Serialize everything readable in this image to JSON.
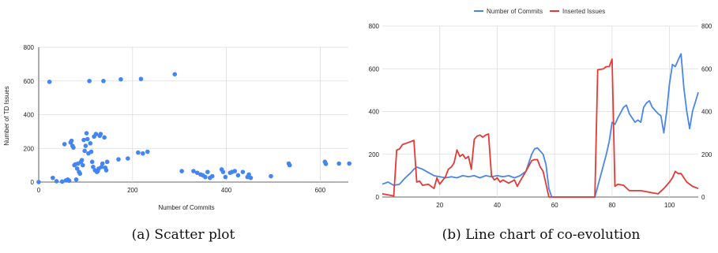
{
  "chart_data": [
    {
      "type": "scatter",
      "xlabel": "Number of Commits",
      "ylabel": "Number of TD Issues",
      "xlim": [
        0,
        660
      ],
      "ylim": [
        0,
        800
      ],
      "xticks": [
        0,
        200,
        400,
        600
      ],
      "yticks": [
        0,
        200,
        400,
        600,
        800
      ],
      "grid": true,
      "point_color": "#4285f4",
      "caption": "(a) Scatter plot",
      "points": [
        [
          0,
          0
        ],
        [
          23,
          595
        ],
        [
          30,
          25
        ],
        [
          38,
          5
        ],
        [
          50,
          3
        ],
        [
          55,
          225
        ],
        [
          58,
          10
        ],
        [
          62,
          15
        ],
        [
          65,
          8
        ],
        [
          68,
          235
        ],
        [
          70,
          245
        ],
        [
          72,
          215
        ],
        [
          74,
          205
        ],
        [
          76,
          100
        ],
        [
          78,
          105
        ],
        [
          80,
          15
        ],
        [
          82,
          80
        ],
        [
          84,
          110
        ],
        [
          86,
          60
        ],
        [
          88,
          50
        ],
        [
          90,
          120
        ],
        [
          92,
          130
        ],
        [
          94,
          100
        ],
        [
          96,
          250
        ],
        [
          98,
          185
        ],
        [
          100,
          215
        ],
        [
          102,
          290
        ],
        [
          104,
          255
        ],
        [
          106,
          170
        ],
        [
          108,
          600
        ],
        [
          110,
          230
        ],
        [
          112,
          180
        ],
        [
          114,
          120
        ],
        [
          116,
          90
        ],
        [
          118,
          270
        ],
        [
          120,
          70
        ],
        [
          122,
          285
        ],
        [
          124,
          60
        ],
        [
          126,
          65
        ],
        [
          128,
          80
        ],
        [
          130,
          275
        ],
        [
          132,
          285
        ],
        [
          134,
          90
        ],
        [
          136,
          110
        ],
        [
          138,
          600
        ],
        [
          140,
          265
        ],
        [
          142,
          85
        ],
        [
          144,
          70
        ],
        [
          146,
          120
        ],
        [
          170,
          135
        ],
        [
          175,
          610
        ],
        [
          190,
          140
        ],
        [
          212,
          175
        ],
        [
          218,
          612
        ],
        [
          222,
          170
        ],
        [
          232,
          180
        ],
        [
          290,
          640
        ],
        [
          305,
          65
        ],
        [
          330,
          65
        ],
        [
          338,
          55
        ],
        [
          345,
          45
        ],
        [
          350,
          40
        ],
        [
          355,
          30
        ],
        [
          360,
          60
        ],
        [
          365,
          25
        ],
        [
          370,
          35
        ],
        [
          390,
          75
        ],
        [
          393,
          60
        ],
        [
          398,
          30
        ],
        [
          408,
          55
        ],
        [
          412,
          60
        ],
        [
          418,
          65
        ],
        [
          425,
          40
        ],
        [
          435,
          60
        ],
        [
          445,
          30
        ],
        [
          448,
          45
        ],
        [
          452,
          25
        ],
        [
          495,
          35
        ],
        [
          533,
          110
        ],
        [
          535,
          100
        ],
        [
          610,
          120
        ],
        [
          612,
          108
        ],
        [
          640,
          110
        ],
        [
          662,
          110
        ]
      ]
    },
    {
      "type": "line",
      "xlim": [
        0,
        110
      ],
      "ylim": [
        0,
        800
      ],
      "y2lim": [
        0,
        800
      ],
      "xticks": [
        20,
        40,
        60,
        80,
        100
      ],
      "yticks": [
        0,
        200,
        400,
        600,
        800
      ],
      "y2ticks": [
        0,
        200,
        400,
        600,
        800
      ],
      "grid": true,
      "legend_position": "top",
      "caption": "(b) Line chart of co-evolution",
      "series": [
        {
          "name": "Number of Commits",
          "color": "#4a86e8",
          "values": [
            [
              0,
              60
            ],
            [
              2,
              70
            ],
            [
              4,
              55
            ],
            [
              6,
              60
            ],
            [
              8,
              90
            ],
            [
              10,
              115
            ],
            [
              11,
              130
            ],
            [
              12,
              140
            ],
            [
              14,
              130
            ],
            [
              16,
              115
            ],
            [
              18,
              100
            ],
            [
              20,
              95
            ],
            [
              22,
              90
            ],
            [
              24,
              95
            ],
            [
              26,
              90
            ],
            [
              28,
              100
            ],
            [
              30,
              95
            ],
            [
              32,
              100
            ],
            [
              34,
              90
            ],
            [
              36,
              100
            ],
            [
              38,
              95
            ],
            [
              40,
              100
            ],
            [
              42,
              95
            ],
            [
              44,
              100
            ],
            [
              46,
              90
            ],
            [
              48,
              100
            ],
            [
              50,
              120
            ],
            [
              52,
              200
            ],
            [
              53,
              225
            ],
            [
              54,
              230
            ],
            [
              56,
              200
            ],
            [
              57,
              150
            ],
            [
              58,
              40
            ],
            [
              59,
              0
            ],
            [
              74,
              0
            ],
            [
              76,
              100
            ],
            [
              78,
              200
            ],
            [
              79,
              260
            ],
            [
              80,
              350
            ],
            [
              81,
              340
            ],
            [
              82,
              370
            ],
            [
              84,
              420
            ],
            [
              85,
              430
            ],
            [
              86,
              390
            ],
            [
              88,
              350
            ],
            [
              89,
              360
            ],
            [
              90,
              350
            ],
            [
              91,
              420
            ],
            [
              92,
              440
            ],
            [
              93,
              450
            ],
            [
              94,
              420
            ],
            [
              96,
              390
            ],
            [
              97,
              380
            ],
            [
              98,
              300
            ],
            [
              99,
              400
            ],
            [
              100,
              530
            ],
            [
              101,
              620
            ],
            [
              102,
              610
            ],
            [
              103,
              640
            ],
            [
              104,
              670
            ],
            [
              105,
              510
            ],
            [
              106,
              400
            ],
            [
              107,
              320
            ],
            [
              108,
              400
            ],
            [
              110,
              490
            ]
          ]
        },
        {
          "name": "Inserted Issues",
          "color": "#e53935",
          "values": [
            [
              0,
              15
            ],
            [
              2,
              10
            ],
            [
              4,
              5
            ],
            [
              5,
              220
            ],
            [
              6,
              225
            ],
            [
              7,
              245
            ],
            [
              8,
              250
            ],
            [
              10,
              260
            ],
            [
              11,
              265
            ],
            [
              12,
              70
            ],
            [
              13,
              75
            ],
            [
              14,
              55
            ],
            [
              16,
              60
            ],
            [
              18,
              40
            ],
            [
              19,
              90
            ],
            [
              20,
              60
            ],
            [
              22,
              95
            ],
            [
              23,
              130
            ],
            [
              24,
              140
            ],
            [
              25,
              160
            ],
            [
              26,
              220
            ],
            [
              27,
              190
            ],
            [
              28,
              200
            ],
            [
              29,
              180
            ],
            [
              30,
              190
            ],
            [
              31,
              130
            ],
            [
              32,
              270
            ],
            [
              33,
              285
            ],
            [
              34,
              290
            ],
            [
              35,
              280
            ],
            [
              36,
              290
            ],
            [
              37,
              295
            ],
            [
              38,
              100
            ],
            [
              39,
              80
            ],
            [
              40,
              90
            ],
            [
              41,
              70
            ],
            [
              42,
              80
            ],
            [
              44,
              65
            ],
            [
              46,
              80
            ],
            [
              47,
              50
            ],
            [
              48,
              75
            ],
            [
              50,
              120
            ],
            [
              52,
              170
            ],
            [
              53,
              175
            ],
            [
              54,
              175
            ],
            [
              55,
              140
            ],
            [
              56,
              120
            ],
            [
              57,
              60
            ],
            [
              58,
              0
            ],
            [
              74,
              0
            ],
            [
              75,
              595
            ],
            [
              77,
              600
            ],
            [
              78,
              610
            ],
            [
              79,
              610
            ],
            [
              80,
              645
            ],
            [
              81,
              50
            ],
            [
              82,
              60
            ],
            [
              84,
              55
            ],
            [
              86,
              30
            ],
            [
              88,
              30
            ],
            [
              90,
              30
            ],
            [
              94,
              20
            ],
            [
              96,
              15
            ],
            [
              98,
              40
            ],
            [
              100,
              70
            ],
            [
              101,
              90
            ],
            [
              102,
              120
            ],
            [
              103,
              110
            ],
            [
              104,
              110
            ],
            [
              106,
              70
            ],
            [
              108,
              50
            ],
            [
              110,
              40
            ]
          ]
        }
      ]
    }
  ]
}
